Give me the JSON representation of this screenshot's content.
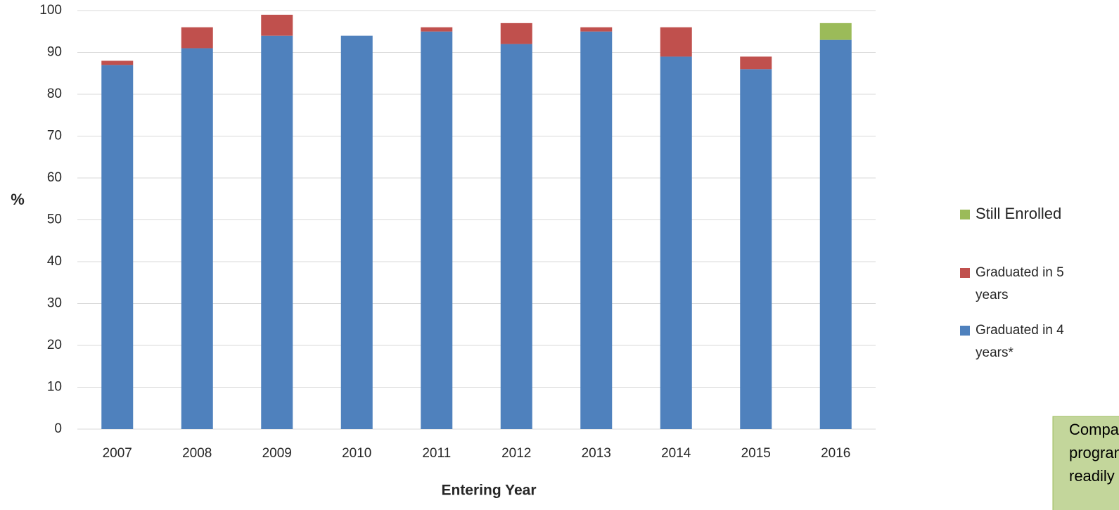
{
  "chart_data": {
    "type": "stacked_bar",
    "x_label": "Entering Year",
    "y_label": "%",
    "categories": [
      "2007",
      "2008",
      "2009",
      "2010",
      "2011",
      "2012",
      "2013",
      "2014",
      "2015",
      "2016"
    ],
    "series": [
      {
        "name": "Graduated in 4 years*",
        "color": "#4f81bd",
        "values": [
          87,
          91,
          94,
          94,
          95,
          92,
          95,
          89,
          86,
          93
        ]
      },
      {
        "name": "Graduated in 5 years",
        "color": "#c0504d",
        "values": [
          1,
          5,
          5,
          0,
          1,
          5,
          1,
          7,
          3,
          0
        ]
      },
      {
        "name": "Still Enrolled",
        "color": "#9bbb59",
        "values": [
          0,
          0,
          0,
          0,
          0,
          0,
          0,
          0,
          0,
          4
        ]
      }
    ],
    "ylim": [
      0,
      100
    ],
    "yticks": [
      0,
      10,
      20,
      30,
      40,
      50,
      60,
      70,
      80,
      90,
      100
    ],
    "grid": true,
    "annotation": [
      "Comparable data fo",
      "programs are not",
      "readily available for"
    ]
  }
}
